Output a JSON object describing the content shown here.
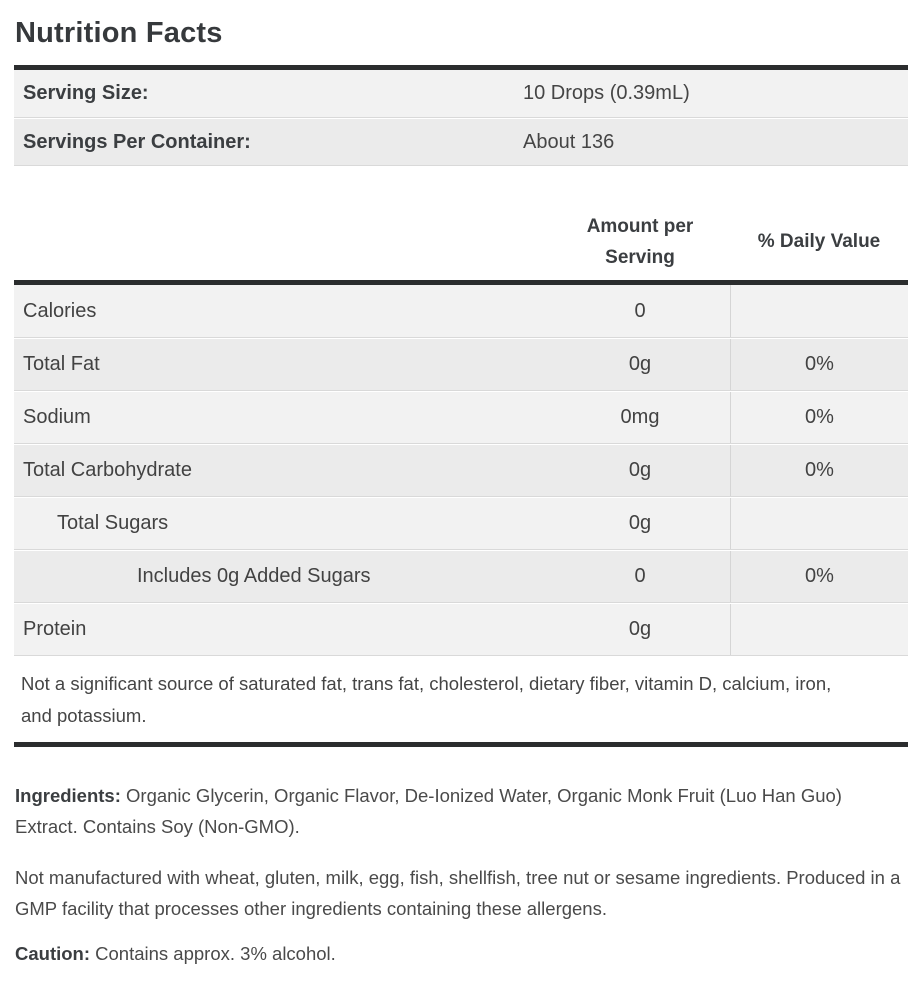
{
  "title": "Nutrition Facts",
  "serving_info": {
    "rows": [
      {
        "label": "Serving Size:",
        "value": "10 Drops (0.39mL)"
      },
      {
        "label": "Servings Per Container:",
        "value": "About 136"
      }
    ]
  },
  "columns": {
    "amount": "Amount per Serving",
    "daily_value": "% Daily Value"
  },
  "nutrients": {
    "rows": [
      {
        "label": "Calories",
        "amount": "0",
        "daily_value": ""
      },
      {
        "label": "Total Fat",
        "amount": "0g",
        "daily_value": "0%"
      },
      {
        "label": "Sodium",
        "amount": "0mg",
        "daily_value": "0%"
      },
      {
        "label": "Total Carbohydrate",
        "amount": "0g",
        "daily_value": "0%"
      },
      {
        "label": "Total Sugars",
        "amount": "0g",
        "daily_value": ""
      },
      {
        "label": "Includes 0g Added Sugars",
        "amount": "0",
        "daily_value": "0%"
      },
      {
        "label": "Protein",
        "amount": "0g",
        "daily_value": ""
      }
    ]
  },
  "footnote": "Not a significant source of saturated fat, trans fat, cholesterol, dietary fiber, vitamin D, calcium, iron, and potassium.",
  "ingredients": {
    "label": "Ingredients:",
    "text": "Organic Glycerin, Organic Flavor, De-Ionized Water, Organic Monk Fruit (Luo Han Guo) Extract. Contains Soy (Non-GMO)."
  },
  "allergen_statement": "Not manufactured with wheat, gluten, milk, egg, fish, shellfish, tree nut or sesame ingredients. Produced in a GMP facility that processes other ingredients containing these allergens.",
  "caution": {
    "label": "Caution:",
    "text": "Contains approx. 3% alcohol."
  },
  "colors": {
    "bar": "#2b2d2e",
    "row_light": "#f2f2f2",
    "row_dark": "#ebebeb",
    "column_divider": "#d5d5d5",
    "text": "#404040"
  }
}
